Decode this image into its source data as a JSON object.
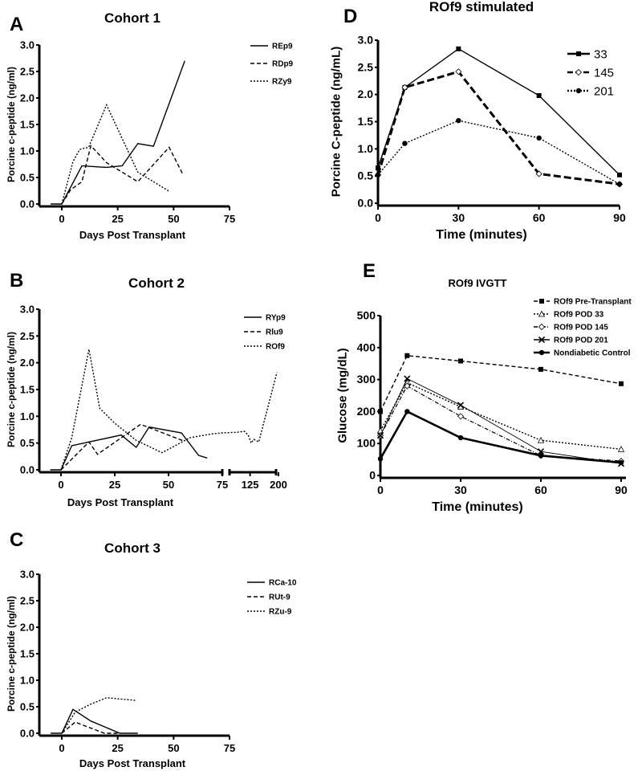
{
  "chart_data": [
    {
      "id": "A",
      "panel_label": "A",
      "type": "line",
      "title": "Cohort 1",
      "xlabel": "Days Post Transplant",
      "ylabel": "Porcine c-peptide (ng/ml)",
      "xlim": [
        -10,
        75
      ],
      "ylim": [
        0,
        3.0
      ],
      "xticks": [
        "0",
        "25",
        "50",
        "75"
      ],
      "yticks": [
        "0.0",
        "0.5",
        "1.0",
        "1.5",
        "2.0",
        "2.5",
        "3.0"
      ],
      "legend": "right",
      "series": [
        {
          "name": "REp9",
          "style": "solid",
          "x": [
            -5,
            0,
            9,
            20,
            27,
            34,
            41,
            55
          ],
          "y": [
            0,
            0,
            0.72,
            0.69,
            0.72,
            1.14,
            1.09,
            2.7
          ]
        },
        {
          "name": "RDp9",
          "style": "dashed",
          "x": [
            0,
            4,
            9,
            13,
            20,
            34,
            48,
            54
          ],
          "y": [
            0,
            0.27,
            0.42,
            1.1,
            0.78,
            0.42,
            1.07,
            0.57
          ]
        },
        {
          "name": "RZy9",
          "style": "dotted",
          "x": [
            0,
            5,
            8,
            12,
            20,
            34,
            48
          ],
          "y": [
            0,
            0.8,
            1.03,
            1.07,
            1.87,
            0.6,
            0.24
          ]
        }
      ]
    },
    {
      "id": "B",
      "panel_label": "B",
      "type": "line",
      "title": "Cohort 2",
      "xlabel": "Days Post Transplant",
      "ylabel": "Porcine c-peptide (ng/ml)",
      "xlim": [
        -10,
        200
      ],
      "axis_break": [
        75,
        80
      ],
      "ylim": [
        0,
        3.0
      ],
      "xticks": [
        "0",
        "25",
        "50",
        "75",
        "125",
        "200"
      ],
      "yticks": [
        "0.0",
        "0.5",
        "1.0",
        "1.5",
        "2.0",
        "2.5",
        "3.0"
      ],
      "legend": "top-right",
      "series": [
        {
          "name": "RYp9",
          "style": "solid",
          "x": [
            -5,
            0,
            5,
            13,
            28,
            35,
            41,
            56,
            64,
            68
          ],
          "y": [
            0,
            0,
            0.45,
            0.52,
            0.65,
            0.42,
            0.8,
            0.69,
            0.27,
            0.22
          ]
        },
        {
          "name": "Rlu9",
          "style": "dashed",
          "x": [
            0,
            13,
            17,
            37,
            57
          ],
          "y": [
            0,
            0.52,
            0.29,
            0.85,
            0.54
          ]
        },
        {
          "name": "ROf9",
          "style": "dotted",
          "x": [
            0,
            5,
            13,
            18,
            25,
            35,
            47,
            60,
            70,
            75,
            88,
            110,
            120,
            128,
            135,
            148,
            196
          ],
          "y": [
            0,
            0.6,
            2.25,
            1.15,
            0.87,
            0.55,
            0.32,
            0.6,
            0.67,
            0.69,
            0.7,
            0.72,
            0.65,
            0.5,
            0.57,
            0.52,
            1.82
          ]
        }
      ]
    },
    {
      "id": "C",
      "panel_label": "C",
      "type": "line",
      "title": "Cohort 3",
      "xlabel": "Days Post Transplant",
      "ylabel": "Porcine c-peptide (ng/ml)",
      "xlim": [
        -10,
        75
      ],
      "ylim": [
        0,
        3.0
      ],
      "xticks": [
        "0",
        "25",
        "50",
        "75"
      ],
      "yticks": [
        "0.0",
        "0.5",
        "1.0",
        "1.5",
        "2.0",
        "2.5",
        "3.0"
      ],
      "legend": "right",
      "series": [
        {
          "name": "RCa-10",
          "style": "solid",
          "x": [
            -5,
            0,
            5,
            13,
            26,
            34
          ],
          "y": [
            0,
            0,
            0.45,
            0.23,
            0,
            0
          ]
        },
        {
          "name": "RUt-9",
          "style": "dashed",
          "x": [
            0,
            6,
            19,
            26
          ],
          "y": [
            0,
            0.21,
            0,
            0
          ]
        },
        {
          "name": "RZu-9",
          "style": "dotted",
          "x": [
            0,
            6,
            13,
            20,
            33
          ],
          "y": [
            0,
            0.4,
            0.55,
            0.67,
            0.62
          ]
        }
      ]
    },
    {
      "id": "D",
      "panel_label": "D",
      "type": "line",
      "title": "ROf9 stimulated",
      "xlabel": "Time (minutes)",
      "ylabel": "Porcine C-peptide (ng/mL)",
      "xlim": [
        0,
        90
      ],
      "ylim": [
        0,
        3.0
      ],
      "xticks": [
        "0",
        "30",
        "60",
        "90"
      ],
      "yticks": [
        "0.0",
        "0.5",
        "1.0",
        "1.5",
        "2.0",
        "2.5",
        "3.0"
      ],
      "legend": "top-right",
      "series": [
        {
          "name": "33",
          "style": "solid",
          "marker": "square",
          "x": [
            0,
            10,
            30,
            60,
            90
          ],
          "y": [
            0.65,
            2.13,
            2.84,
            1.98,
            0.52
          ]
        },
        {
          "name": "145",
          "style": "dashed",
          "marker": "open-diamond",
          "x": [
            0,
            10,
            30,
            60,
            90
          ],
          "y": [
            0.52,
            2.13,
            2.42,
            0.54,
            0.35
          ]
        },
        {
          "name": "201",
          "style": "dotted",
          "marker": "circle",
          "x": [
            0,
            10,
            30,
            60,
            90
          ],
          "y": [
            0.52,
            1.1,
            1.52,
            1.2,
            0.35
          ]
        }
      ]
    },
    {
      "id": "E",
      "panel_label": "E",
      "type": "line",
      "title": "ROf9 IVGTT",
      "xlabel": "Time (minutes)",
      "ylabel": "Glucose (mg/dL)",
      "xlim": [
        0,
        90
      ],
      "ylim": [
        0,
        500
      ],
      "xticks": [
        "0",
        "30",
        "60",
        "90"
      ],
      "yticks": [
        "0",
        "100",
        "200",
        "300",
        "400",
        "500"
      ],
      "legend": "top-right",
      "series": [
        {
          "name": "ROf9 Pre-Transplant",
          "style": "dashed",
          "marker": "square",
          "x": [
            0,
            10,
            30,
            60,
            90
          ],
          "y": [
            200,
            375,
            358,
            332,
            287
          ]
        },
        {
          "name": "ROf9 POD 33",
          "style": "dotted",
          "marker": "open-triangle",
          "x": [
            0,
            10,
            30,
            60,
            90
          ],
          "y": [
            140,
            290,
            215,
            110,
            82
          ]
        },
        {
          "name": "ROf9 POD 145",
          "style": "dashdot",
          "marker": "open-diamond",
          "x": [
            0,
            10,
            30,
            60,
            90
          ],
          "y": [
            125,
            280,
            185,
            62,
            45
          ]
        },
        {
          "name": "ROf9 POD 201",
          "style": "thin",
          "marker": "x",
          "x": [
            0,
            10,
            30,
            60,
            90
          ],
          "y": [
            125,
            303,
            220,
            75,
            37
          ]
        },
        {
          "name": "Nondiabetic Control",
          "style": "thick",
          "marker": "circle",
          "x": [
            0,
            10,
            30,
            60,
            90
          ],
          "y": [
            52,
            200,
            118,
            62,
            40
          ]
        }
      ]
    }
  ]
}
